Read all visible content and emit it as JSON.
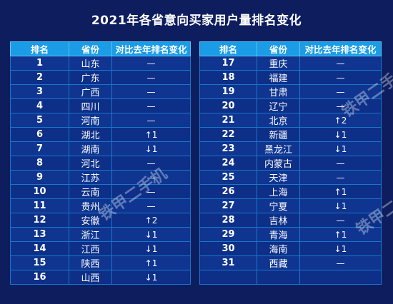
{
  "chart_data": {
    "type": "table",
    "title": "2021年各省意向买家用户量排名变化",
    "columns": [
      "排名",
      "省份",
      "对比去年排名变化"
    ],
    "left_rows": [
      {
        "rank": "1",
        "province": "山东",
        "change": "—"
      },
      {
        "rank": "2",
        "province": "广东",
        "change": "—"
      },
      {
        "rank": "3",
        "province": "广西",
        "change": "—"
      },
      {
        "rank": "4",
        "province": "四川",
        "change": "—"
      },
      {
        "rank": "5",
        "province": "河南",
        "change": "—"
      },
      {
        "rank": "6",
        "province": "湖北",
        "change": "↑1"
      },
      {
        "rank": "7",
        "province": "湖南",
        "change": "↓1"
      },
      {
        "rank": "8",
        "province": "河北",
        "change": "—"
      },
      {
        "rank": "9",
        "province": "江苏",
        "change": "—"
      },
      {
        "rank": "10",
        "province": "云南",
        "change": "—"
      },
      {
        "rank": "11",
        "province": "贵州",
        "change": "—"
      },
      {
        "rank": "12",
        "province": "安徽",
        "change": "↑2"
      },
      {
        "rank": "13",
        "province": "浙江",
        "change": "↓1"
      },
      {
        "rank": "14",
        "province": "江西",
        "change": "↓1"
      },
      {
        "rank": "15",
        "province": "陕西",
        "change": "↑1"
      },
      {
        "rank": "16",
        "province": "山西",
        "change": "↓1"
      }
    ],
    "right_rows": [
      {
        "rank": "17",
        "province": "重庆",
        "change": "—"
      },
      {
        "rank": "18",
        "province": "福建",
        "change": "—"
      },
      {
        "rank": "19",
        "province": "甘肃",
        "change": "—"
      },
      {
        "rank": "20",
        "province": "辽宁",
        "change": "—"
      },
      {
        "rank": "21",
        "province": "北京",
        "change": "↑2"
      },
      {
        "rank": "22",
        "province": "新疆",
        "change": "↓1"
      },
      {
        "rank": "23",
        "province": "黑龙江",
        "change": "↓1"
      },
      {
        "rank": "24",
        "province": "内蒙古",
        "change": "—"
      },
      {
        "rank": "25",
        "province": "天津",
        "change": "—"
      },
      {
        "rank": "26",
        "province": "上海",
        "change": "↑1"
      },
      {
        "rank": "27",
        "province": "宁夏",
        "change": "↓1"
      },
      {
        "rank": "28",
        "province": "吉林",
        "change": "—"
      },
      {
        "rank": "29",
        "province": "青海",
        "change": "↑1"
      },
      {
        "rank": "30",
        "province": "海南",
        "change": "↓1"
      },
      {
        "rank": "31",
        "province": "西藏",
        "change": "—"
      },
      {
        "rank": "",
        "province": "",
        "change": ""
      }
    ]
  },
  "watermark": "铁甲二手机",
  "colors": {
    "background": "#0d1d5e",
    "header": "#1b9ce6",
    "row": "#0d2f88",
    "row_alt": "#0f3591",
    "grid": "#1a76c9"
  }
}
